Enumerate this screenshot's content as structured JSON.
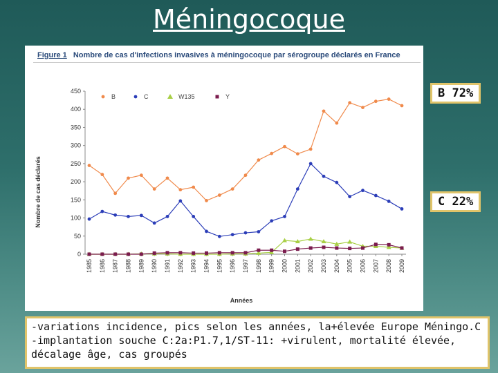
{
  "slide": {
    "title": "Méningocoque",
    "callout_b": "B 72%",
    "callout_c": "C 22%",
    "notes": [
      "-variations incidence, pics selon les années, la+élevée Europe Méningo.C",
      "-implantation souche C:2a:P1.7,1/ST-11: +virulent, mortalité élevée,",
      "décalage âge, cas groupés"
    ]
  },
  "figure": {
    "label": "Figure 1",
    "caption": "Nombre de cas d'infections invasives à méningocoque par sérogroupe déclarés en France"
  },
  "chart_data": {
    "type": "line",
    "title": "Nombre de cas d'infections invasives à méningocoque par sérogroupe déclarés en France",
    "xlabel": "Années",
    "ylabel": "Nombre de cas déclarés",
    "ylim": [
      0,
      450
    ],
    "yticks": [
      0,
      50,
      100,
      150,
      200,
      250,
      300,
      350,
      400,
      450
    ],
    "x": [
      "1985",
      "1986",
      "1987",
      "1988",
      "1989",
      "1990",
      "1991",
      "1992",
      "1993",
      "1994",
      "1995",
      "1996",
      "1997",
      "1998",
      "1999",
      "2000",
      "2001",
      "2002",
      "2003",
      "2004",
      "2005",
      "2006",
      "2007",
      "2008",
      "2009"
    ],
    "legend_position": "top",
    "series": [
      {
        "name": "B",
        "color": "#f08a4b",
        "marker": "circle",
        "values": [
          245,
          220,
          168,
          210,
          218,
          180,
          210,
          178,
          185,
          148,
          163,
          180,
          218,
          260,
          278,
          297,
          277,
          290,
          395,
          362,
          418,
          405,
          422,
          428,
          410
        ]
      },
      {
        "name": "C",
        "color": "#2b3db8",
        "marker": "circle",
        "values": [
          97,
          118,
          108,
          104,
          107,
          86,
          104,
          147,
          104,
          63,
          49,
          54,
          59,
          62,
          92,
          104,
          180,
          250,
          215,
          198,
          159,
          176,
          162,
          146,
          125
        ]
      },
      {
        "name": "W135",
        "color": "#a8cf45",
        "marker": "triangle",
        "values": [
          0,
          0,
          0,
          0,
          1,
          1,
          1,
          0,
          0,
          0,
          0,
          1,
          1,
          3,
          5,
          38,
          35,
          42,
          35,
          28,
          34,
          22,
          22,
          19,
          17
        ]
      },
      {
        "name": "Y",
        "color": "#7b1c4e",
        "marker": "square",
        "values": [
          0,
          0,
          0,
          0,
          0,
          3,
          4,
          4,
          3,
          3,
          4,
          4,
          4,
          11,
          11,
          8,
          14,
          17,
          19,
          17,
          16,
          17,
          27,
          26,
          17
        ]
      }
    ]
  }
}
